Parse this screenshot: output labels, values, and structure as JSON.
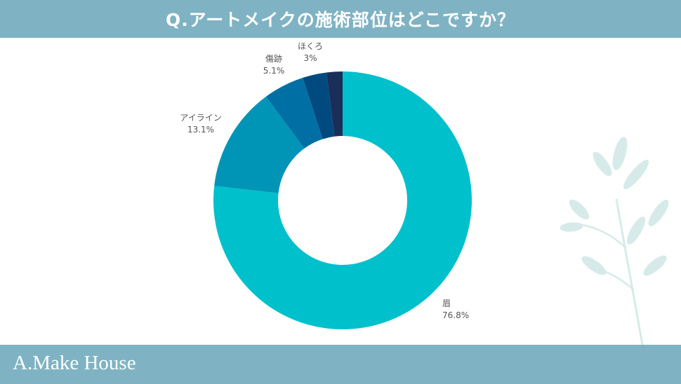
{
  "title": "Q.アートメイクの施術部位はどこですか？",
  "brand": "A.Make House",
  "colors": {
    "header_bg": "#7fb3c3",
    "footer_bg": "#7fb3c3",
    "leaf": "#d6ebe9"
  },
  "chart_data": {
    "type": "pie",
    "style": "donut",
    "slices": [
      {
        "label": "眉",
        "value": 76.8,
        "display": "76.8%",
        "color": "#00c0cc"
      },
      {
        "label": "アイライン",
        "value": 13.1,
        "display": "13.1%",
        "color": "#0094b6"
      },
      {
        "label": "傷跡",
        "value": 5.1,
        "display": "5.1%",
        "color": "#0070a4"
      },
      {
        "label": "ほくろ",
        "value": 3,
        "display": "3%",
        "color": "#004a80"
      },
      {
        "label": "",
        "value": 2,
        "display": "",
        "color": "#1a2e5a"
      }
    ]
  }
}
